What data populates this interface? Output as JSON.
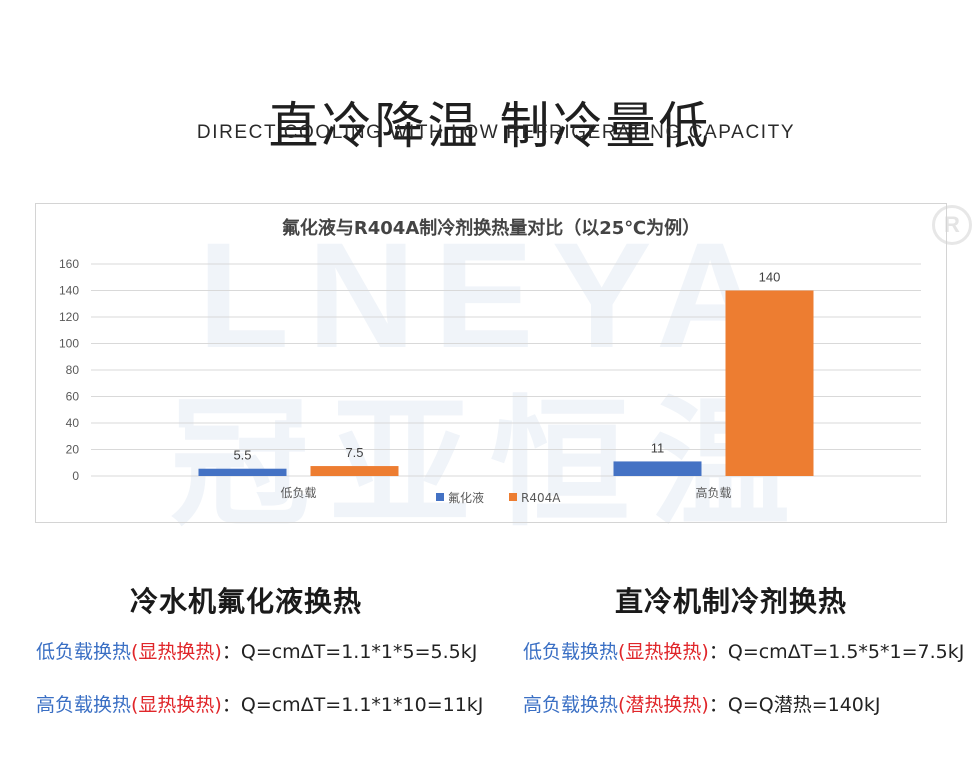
{
  "header": {
    "title": "直冷降温 制冷量低",
    "subtitle": "DIRECT COOLING WITH LOW REFRIGERATING CAPACITY",
    "registered_mark": "R"
  },
  "watermark": {
    "en": "LNEYA",
    "cn": "冠亚恒温"
  },
  "chart_data": {
    "type": "bar",
    "title": "氟化液与R404A制冷剂换热量对比（以25℃为例）",
    "categories": [
      "低负载",
      "高负载"
    ],
    "series": [
      {
        "name": "氟化液",
        "values": [
          5.5,
          11
        ],
        "labels": [
          "5.5",
          "11"
        ],
        "color": "#4472c4"
      },
      {
        "name": "R404A",
        "values": [
          7.5,
          140
        ],
        "labels": [
          "7.5",
          "140"
        ],
        "color": "#ed7d31"
      }
    ],
    "ylim": [
      0,
      160
    ],
    "yticks": [
      "0",
      "20",
      "40",
      "60",
      "80",
      "100",
      "120",
      "140",
      "160"
    ],
    "grid": true,
    "legend_position": "bottom",
    "xlabel": "",
    "ylabel": ""
  },
  "sections": [
    {
      "heading": "冷水机氟化液换热",
      "lines": [
        {
          "name": "低负载换热",
          "paren": "(显热换热)",
          "sep": "：",
          "formula": "Q=cmΔT=1.1*1*5=5.5kJ"
        },
        {
          "name": "高负载换热",
          "paren": "(显热换热)",
          "sep": "：",
          "formula": "Q=cmΔT=1.1*1*10=11kJ"
        }
      ]
    },
    {
      "heading": "直冷机制冷剂换热",
      "lines": [
        {
          "name": "低负载换热",
          "paren": "(显热换热)",
          "sep": "：",
          "formula": "Q=cmΔT=1.5*5*1=7.5kJ"
        },
        {
          "name": "高负载换热",
          "paren": "(潜热换热)",
          "sep": "：",
          "formula": "Q=Q潜热=140kJ"
        }
      ]
    }
  ]
}
